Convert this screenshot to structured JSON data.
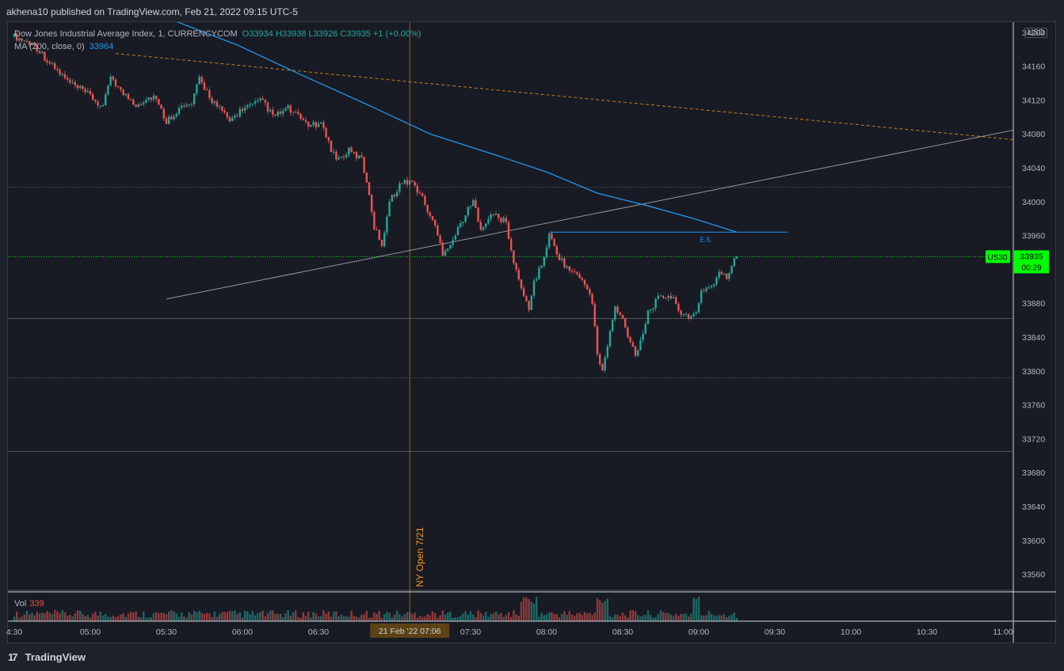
{
  "header": {
    "publisher_line": "akhena10 published on TradingView.com, Feb 21, 2022 09:15 UTC-5"
  },
  "legend": {
    "symbol": "Dow Jones Industrial Average Index, 1, CURRENCYCOM",
    "ohlc": "O33934  H33938  L33926  C33935  +1 (+0.00%)",
    "ma_label": "MA (200, close, 0)",
    "ma_value": "33964"
  },
  "currency": "USD",
  "price_tag": {
    "symbol": "US30",
    "price": "33935",
    "countdown": "00:29"
  },
  "volume": {
    "label": "Vol",
    "value": "339"
  },
  "annotations": {
    "ny_open": "NY Open 7/21",
    "es": "E.S.",
    "crosshair_date": "21 Feb '22  07:06"
  },
  "footer": {
    "brand": "TradingView"
  },
  "colors": {
    "up": "#26a69a",
    "down": "#ef5350",
    "ma": "#2196f3",
    "trend": "#b2b5be",
    "dashed_trend": "#f7931a",
    "last_price": "#00ff00"
  },
  "chart_data": {
    "type": "candlestick",
    "title": "Dow Jones Industrial Average Index, 1, CURRENCYCOM",
    "timeframe_minutes": 1,
    "x_ticks": [
      "4:30",
      "05:00",
      "05:30",
      "06:00",
      "06:30",
      "07:00",
      "07:30",
      "08:00",
      "08:30",
      "09:00",
      "09:30",
      "10:00",
      "10:30",
      "11:00"
    ],
    "y_ticks": [
      34200,
      34160,
      34120,
      34080,
      34040,
      34000,
      33960,
      33920,
      33880,
      33840,
      33800,
      33760,
      33720,
      33680,
      33640,
      33600,
      33560
    ],
    "y_range": [
      33535,
      34212
    ],
    "x_range": [
      "04:30",
      "11:05"
    ],
    "close_path": [
      {
        "t": "04:30",
        "c": 34195
      },
      {
        "t": "04:38",
        "c": 34185
      },
      {
        "t": "04:45",
        "c": 34160
      },
      {
        "t": "04:52",
        "c": 34140
      },
      {
        "t": "05:00",
        "c": 34125
      },
      {
        "t": "05:05",
        "c": 34110
      },
      {
        "t": "05:08",
        "c": 34150
      },
      {
        "t": "05:12",
        "c": 34130
      },
      {
        "t": "05:18",
        "c": 34115
      },
      {
        "t": "05:25",
        "c": 34125
      },
      {
        "t": "05:30",
        "c": 34095
      },
      {
        "t": "05:35",
        "c": 34110
      },
      {
        "t": "05:40",
        "c": 34115
      },
      {
        "t": "05:43",
        "c": 34145
      },
      {
        "t": "05:48",
        "c": 34120
      },
      {
        "t": "05:55",
        "c": 34095
      },
      {
        "t": "06:00",
        "c": 34110
      },
      {
        "t": "06:05",
        "c": 34115
      },
      {
        "t": "06:08",
        "c": 34120
      },
      {
        "t": "06:12",
        "c": 34100
      },
      {
        "t": "06:18",
        "c": 34110
      },
      {
        "t": "06:22",
        "c": 34100
      },
      {
        "t": "06:27",
        "c": 34090
      },
      {
        "t": "06:32",
        "c": 34090
      },
      {
        "t": "06:35",
        "c": 34060
      },
      {
        "t": "06:38",
        "c": 34050
      },
      {
        "t": "06:42",
        "c": 34060
      },
      {
        "t": "06:47",
        "c": 34050
      },
      {
        "t": "06:50",
        "c": 34010
      },
      {
        "t": "06:52",
        "c": 33970
      },
      {
        "t": "06:55",
        "c": 33950
      },
      {
        "t": "06:58",
        "c": 34000
      },
      {
        "t": "07:02",
        "c": 34020
      },
      {
        "t": "07:06",
        "c": 34025
      },
      {
        "t": "07:10",
        "c": 34010
      },
      {
        "t": "07:13",
        "c": 33990
      },
      {
        "t": "07:16",
        "c": 33970
      },
      {
        "t": "07:19",
        "c": 33940
      },
      {
        "t": "07:23",
        "c": 33955
      },
      {
        "t": "07:27",
        "c": 33980
      },
      {
        "t": "07:31",
        "c": 34000
      },
      {
        "t": "07:34",
        "c": 33970
      },
      {
        "t": "07:39",
        "c": 33985
      },
      {
        "t": "07:44",
        "c": 33975
      },
      {
        "t": "07:46",
        "c": 33940
      },
      {
        "t": "07:48",
        "c": 33920
      },
      {
        "t": "07:50",
        "c": 33895
      },
      {
        "t": "07:53",
        "c": 33875
      },
      {
        "t": "07:55",
        "c": 33905
      },
      {
        "t": "07:58",
        "c": 33925
      },
      {
        "t": "08:01",
        "c": 33960
      },
      {
        "t": "08:04",
        "c": 33940
      },
      {
        "t": "08:07",
        "c": 33925
      },
      {
        "t": "08:11",
        "c": 33915
      },
      {
        "t": "08:15",
        "c": 33905
      },
      {
        "t": "08:18",
        "c": 33880
      },
      {
        "t": "08:20",
        "c": 33820
      },
      {
        "t": "08:22",
        "c": 33800
      },
      {
        "t": "08:25",
        "c": 33845
      },
      {
        "t": "08:27",
        "c": 33875
      },
      {
        "t": "08:30",
        "c": 33860
      },
      {
        "t": "08:33",
        "c": 33835
      },
      {
        "t": "08:35",
        "c": 33820
      },
      {
        "t": "08:38",
        "c": 33845
      },
      {
        "t": "08:40",
        "c": 33870
      },
      {
        "t": "08:44",
        "c": 33885
      },
      {
        "t": "08:48",
        "c": 33890
      },
      {
        "t": "08:51",
        "c": 33880
      },
      {
        "t": "08:53",
        "c": 33870
      },
      {
        "t": "08:56",
        "c": 33860
      },
      {
        "t": "08:59",
        "c": 33870
      },
      {
        "t": "09:01",
        "c": 33895
      },
      {
        "t": "09:05",
        "c": 33900
      },
      {
        "t": "09:08",
        "c": 33915
      },
      {
        "t": "09:11",
        "c": 33910
      },
      {
        "t": "09:13",
        "c": 33925
      },
      {
        "t": "09:15",
        "c": 33935
      }
    ],
    "ma200": [
      {
        "t": "05:32",
        "v": 34215
      },
      {
        "t": "05:58",
        "v": 34185
      },
      {
        "t": "06:23",
        "v": 34150
      },
      {
        "t": "06:49",
        "v": 34115
      },
      {
        "t": "07:14",
        "v": 34080
      },
      {
        "t": "07:40",
        "v": 34055
      },
      {
        "t": "08:00",
        "v": 34035
      },
      {
        "t": "08:20",
        "v": 34010
      },
      {
        "t": "08:40",
        "v": 33995
      },
      {
        "t": "08:58",
        "v": 33980
      },
      {
        "t": "09:15",
        "v": 33964
      }
    ],
    "trendlines": [
      {
        "style": "solid",
        "from": {
          "t": "05:30",
          "p": 33885
        },
        "to": {
          "t": "11:05",
          "p": 34085
        }
      },
      {
        "style": "dashed",
        "from": {
          "t": "05:10",
          "p": 34175
        },
        "to": {
          "t": "11:05",
          "p": 34073
        }
      }
    ],
    "horizontal_levels": [
      {
        "price": 34017,
        "style": "dotted"
      },
      {
        "price": 33935,
        "style": "dotted",
        "color": "last_price"
      },
      {
        "price": 33862,
        "style": "solid"
      },
      {
        "price": 33792,
        "style": "dotted"
      },
      {
        "price": 33705,
        "style": "solid"
      },
      {
        "price": 33541,
        "style": "solid"
      }
    ],
    "es_level": {
      "price": 33964,
      "from": "08:01",
      "to": "09:35"
    },
    "vertical_marker": {
      "t": "07:06"
    }
  }
}
